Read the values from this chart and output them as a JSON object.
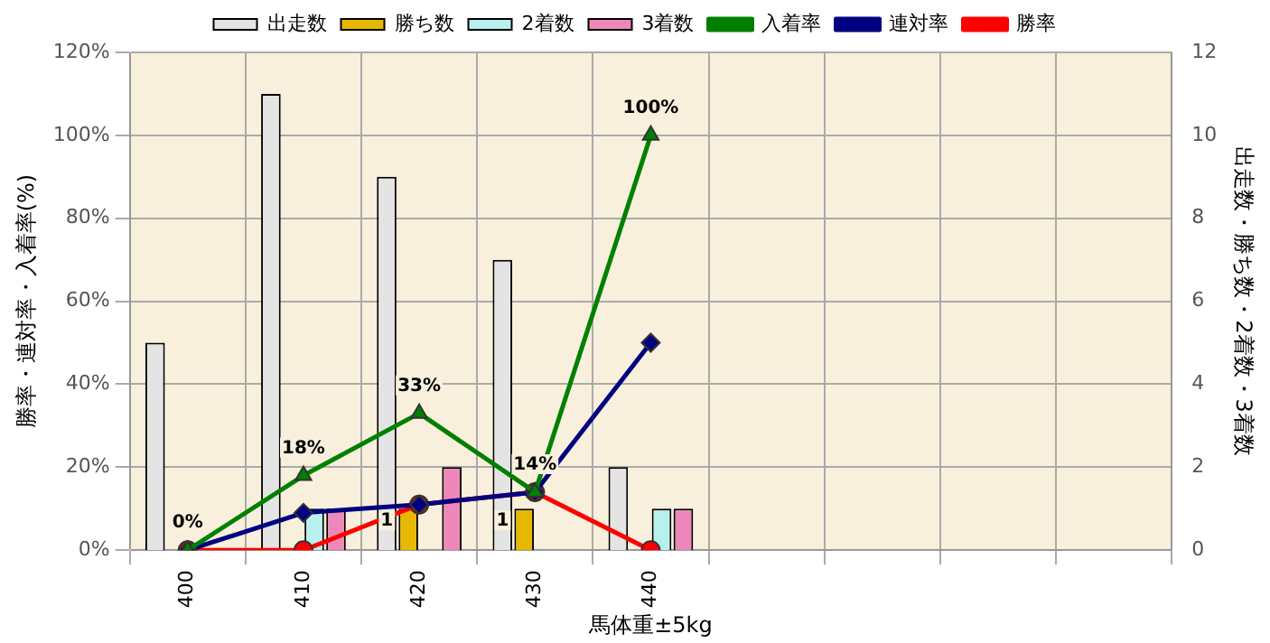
{
  "chart_data": {
    "type": "bar",
    "categories": [
      "400",
      "410",
      "420",
      "430",
      "440",
      null,
      null,
      null,
      null
    ],
    "xlabel": "馬体重±5kg",
    "ylabel": "勝率・連対率・入着率(%)",
    "y2label": "出走数・勝ち数・2着数・3着数",
    "ylim": [
      0,
      120
    ],
    "yticks": [
      {
        "value": 0,
        "label": "0%"
      },
      {
        "value": 20,
        "label": "20%"
      },
      {
        "value": 40,
        "label": "40%"
      },
      {
        "value": 60,
        "label": "60%"
      },
      {
        "value": 80,
        "label": "80%"
      },
      {
        "value": 100,
        "label": "100%"
      },
      {
        "value": 120,
        "label": "120%"
      }
    ],
    "y2lim": [
      0,
      12
    ],
    "y2ticks": [
      0,
      2,
      4,
      6,
      8,
      10,
      12
    ],
    "grid": true,
    "legend": "top",
    "series": [
      {
        "name": "出走数",
        "axis": "y2",
        "color": "#e4e4e4",
        "values": [
          5,
          11,
          9,
          7,
          2,
          null,
          null,
          null,
          null
        ]
      },
      {
        "name": "勝ち数",
        "axis": "y2",
        "color": "#e6b800",
        "values": [
          0,
          0,
          1,
          1,
          0,
          null,
          null,
          null,
          null
        ],
        "value_labels": [
          null,
          null,
          "1",
          "1",
          null,
          null,
          null,
          null,
          null
        ]
      },
      {
        "name": "2着数",
        "axis": "y2",
        "color": "#b8f0f0",
        "values": [
          0,
          1,
          0,
          0,
          1,
          null,
          null,
          null,
          null
        ]
      },
      {
        "name": "3着数",
        "axis": "y2",
        "color": "#ee88bb",
        "values": [
          0,
          1,
          2,
          0,
          1,
          null,
          null,
          null,
          null
        ]
      },
      {
        "name": "入着率",
        "type": "line",
        "color": "#008000",
        "marker": "triangle",
        "values": [
          0,
          18,
          33,
          14,
          100,
          null,
          null,
          null,
          null
        ],
        "value_labels": [
          "0%",
          "18%",
          "33%",
          "14%",
          "100%",
          null,
          null,
          null,
          null
        ]
      },
      {
        "name": "連対率",
        "type": "line",
        "color": "#000080",
        "marker": "diamond",
        "values": [
          0,
          9,
          11,
          14,
          50,
          null,
          null,
          null,
          null
        ]
      },
      {
        "name": "勝率",
        "type": "line",
        "color": "#ff0000",
        "marker": "circle",
        "values": [
          0,
          0,
          11,
          14,
          0,
          null,
          null,
          null,
          null
        ]
      }
    ]
  }
}
